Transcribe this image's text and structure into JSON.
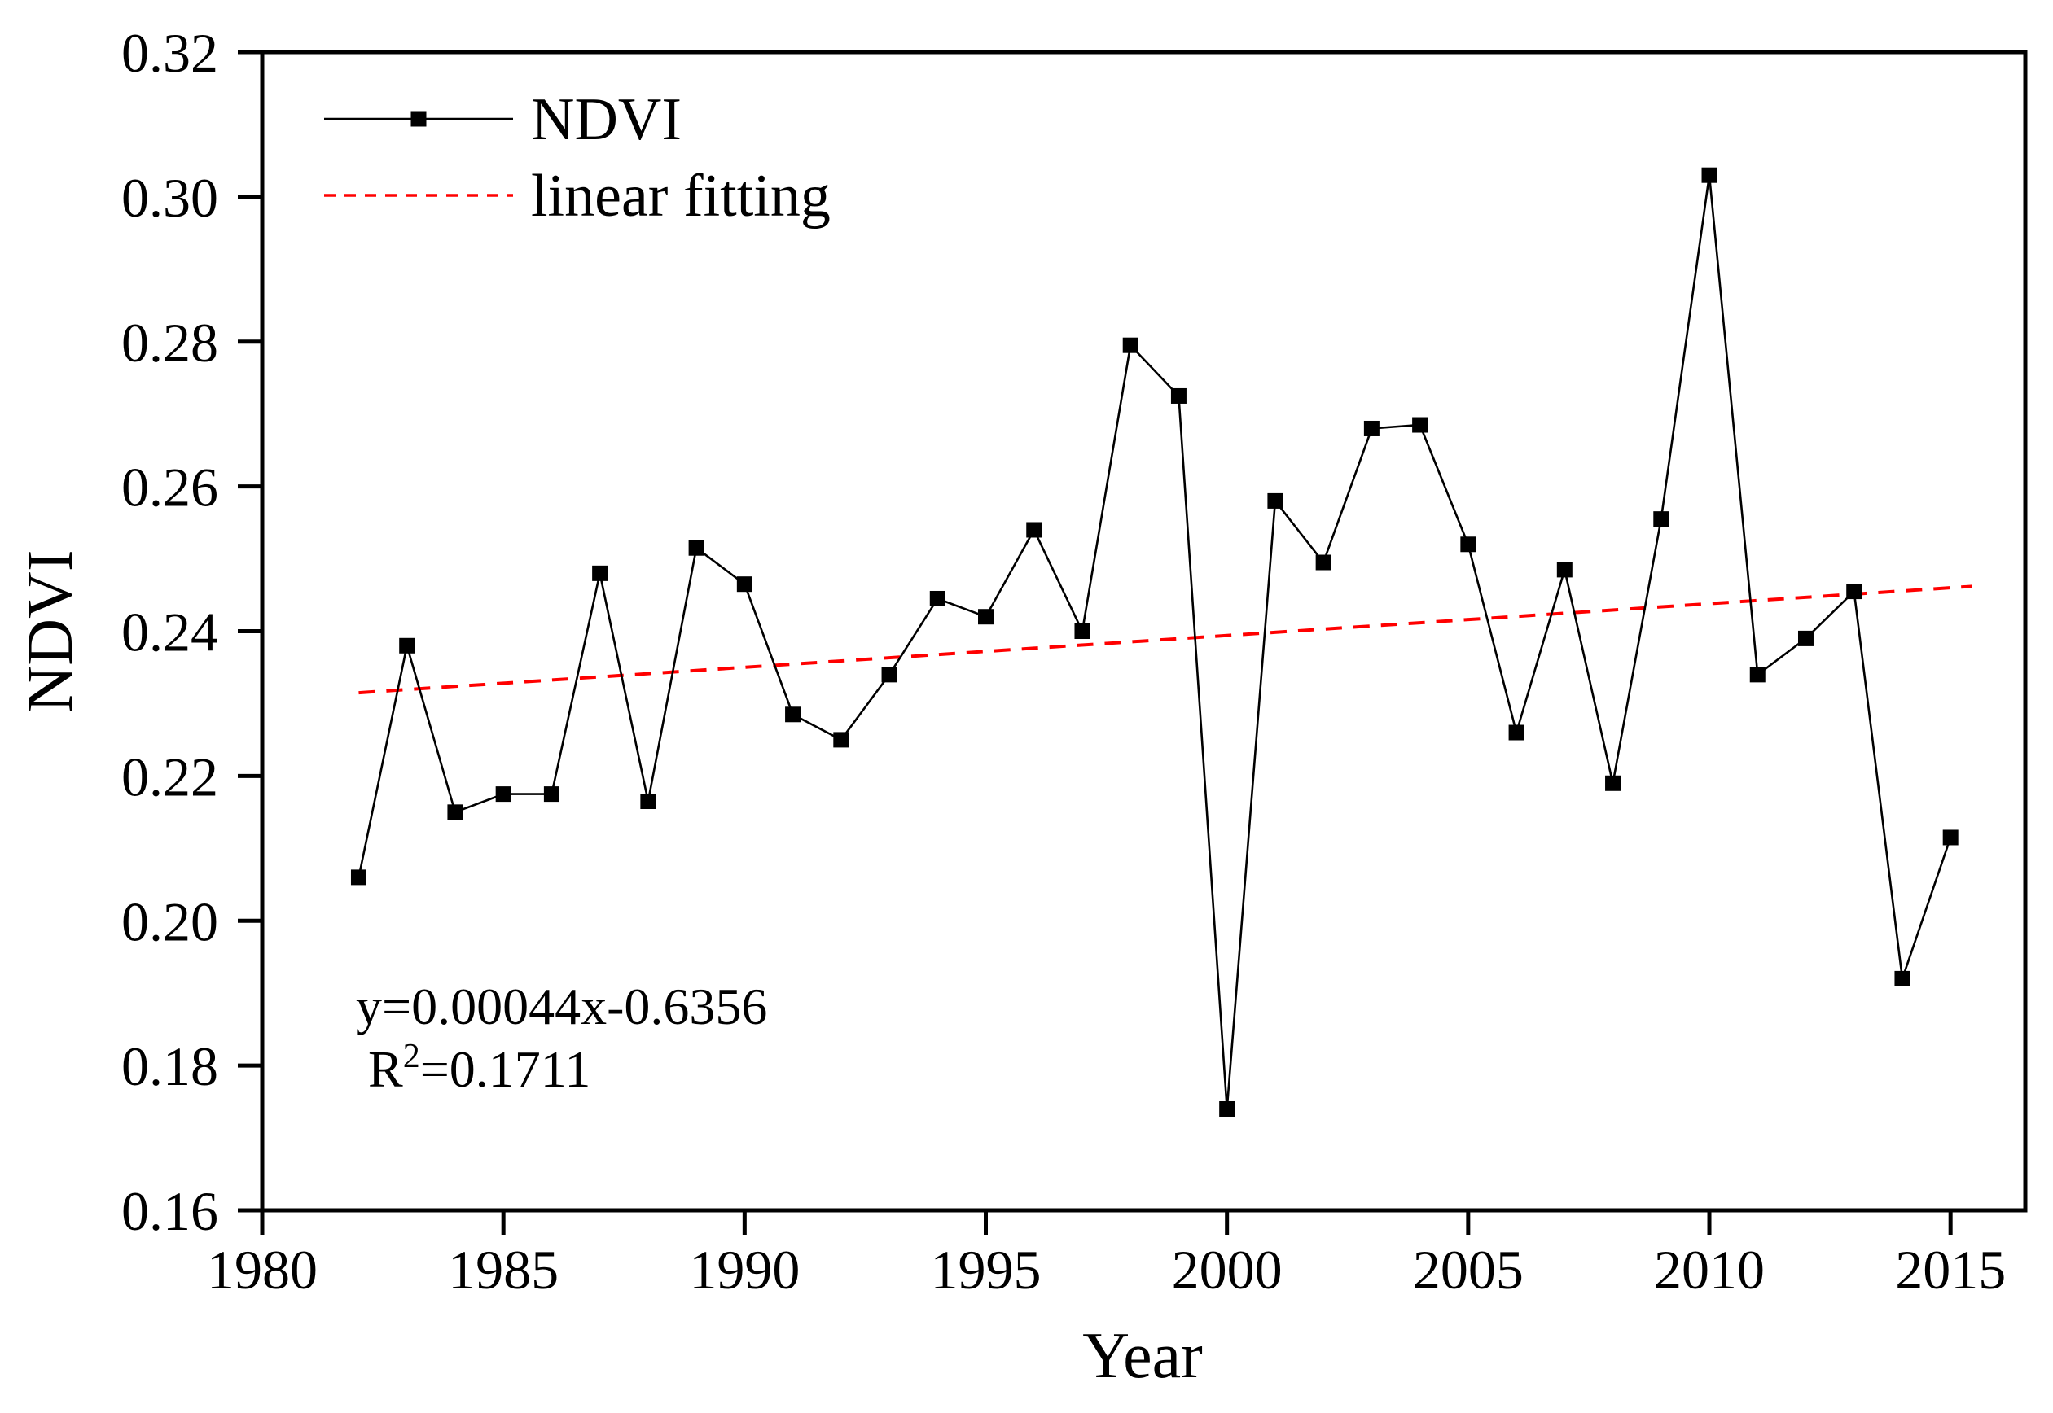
{
  "chart_data": {
    "type": "line",
    "title": "",
    "xlabel": "Year",
    "ylabel": "NDVI",
    "xlim": [
      1980,
      2016.55
    ],
    "ylim": [
      0.16,
      0.32
    ],
    "grid": false,
    "legend_position": "top-left-inside",
    "xticks": [
      1980,
      1985,
      1990,
      1995,
      2000,
      2005,
      2010,
      2015
    ],
    "yticks": [
      0.32,
      0.3,
      0.28,
      0.26,
      0.24,
      0.22,
      0.2,
      0.18,
      0.16
    ],
    "ytick_labels": [
      "0.32",
      "0.30",
      "0.28",
      "0.26",
      "0.24",
      "0.22",
      "0.20",
      "0.18",
      "0.16"
    ],
    "xtick_labels": [
      "1980",
      "1985",
      "1990",
      "1995",
      "2000",
      "2005",
      "2010",
      "2015"
    ],
    "x": [
      1982,
      1983,
      1984,
      1985,
      1986,
      1987,
      1988,
      1989,
      1990,
      1991,
      1992,
      1993,
      1994,
      1995,
      1996,
      1997,
      1998,
      1999,
      2000,
      2001,
      2002,
      2003,
      2004,
      2005,
      2006,
      2007,
      2008,
      2009,
      2010,
      2011,
      2012,
      2013,
      2014,
      2015
    ],
    "series": [
      {
        "name": "NDVI",
        "marker": "square",
        "color": "#000000",
        "values": [
          0.206,
          0.238,
          0.215,
          0.2175,
          0.2175,
          0.248,
          0.2165,
          0.2515,
          0.2465,
          0.2285,
          0.225,
          0.234,
          0.2445,
          0.242,
          0.254,
          0.24,
          0.2795,
          0.2725,
          0.174,
          0.258,
          0.2495,
          0.268,
          0.2685,
          0.252,
          0.226,
          0.2485,
          0.219,
          0.2555,
          0.303,
          0.234,
          0.239,
          0.2455,
          0.192,
          0.2115
        ]
      }
    ],
    "trend_line": {
      "name": "linear fitting",
      "color": "#ff0000",
      "style": "dashed",
      "x_start": 1982,
      "y_start": 0.2315,
      "x_end": 2015.45,
      "y_end": 0.2462
    }
  },
  "legend": {
    "items": [
      {
        "label": "NDVI",
        "symbol": "black-line-square-marker"
      },
      {
        "label": "linear fitting",
        "symbol": "red-dashed-line"
      }
    ]
  },
  "annotation": {
    "equation": "y=0.00044x-0.6356",
    "r2_base": "R",
    "r2_sup": "2",
    "r2_rest": "=0.1711"
  },
  "axis_titles": {
    "x": "Year",
    "y": "NDVI"
  },
  "colors": {
    "background": "#ffffff",
    "axis": "#000000",
    "series_line": "#000000",
    "marker_fill": "#000000",
    "trend": "#ff0000",
    "text": "#000000"
  }
}
